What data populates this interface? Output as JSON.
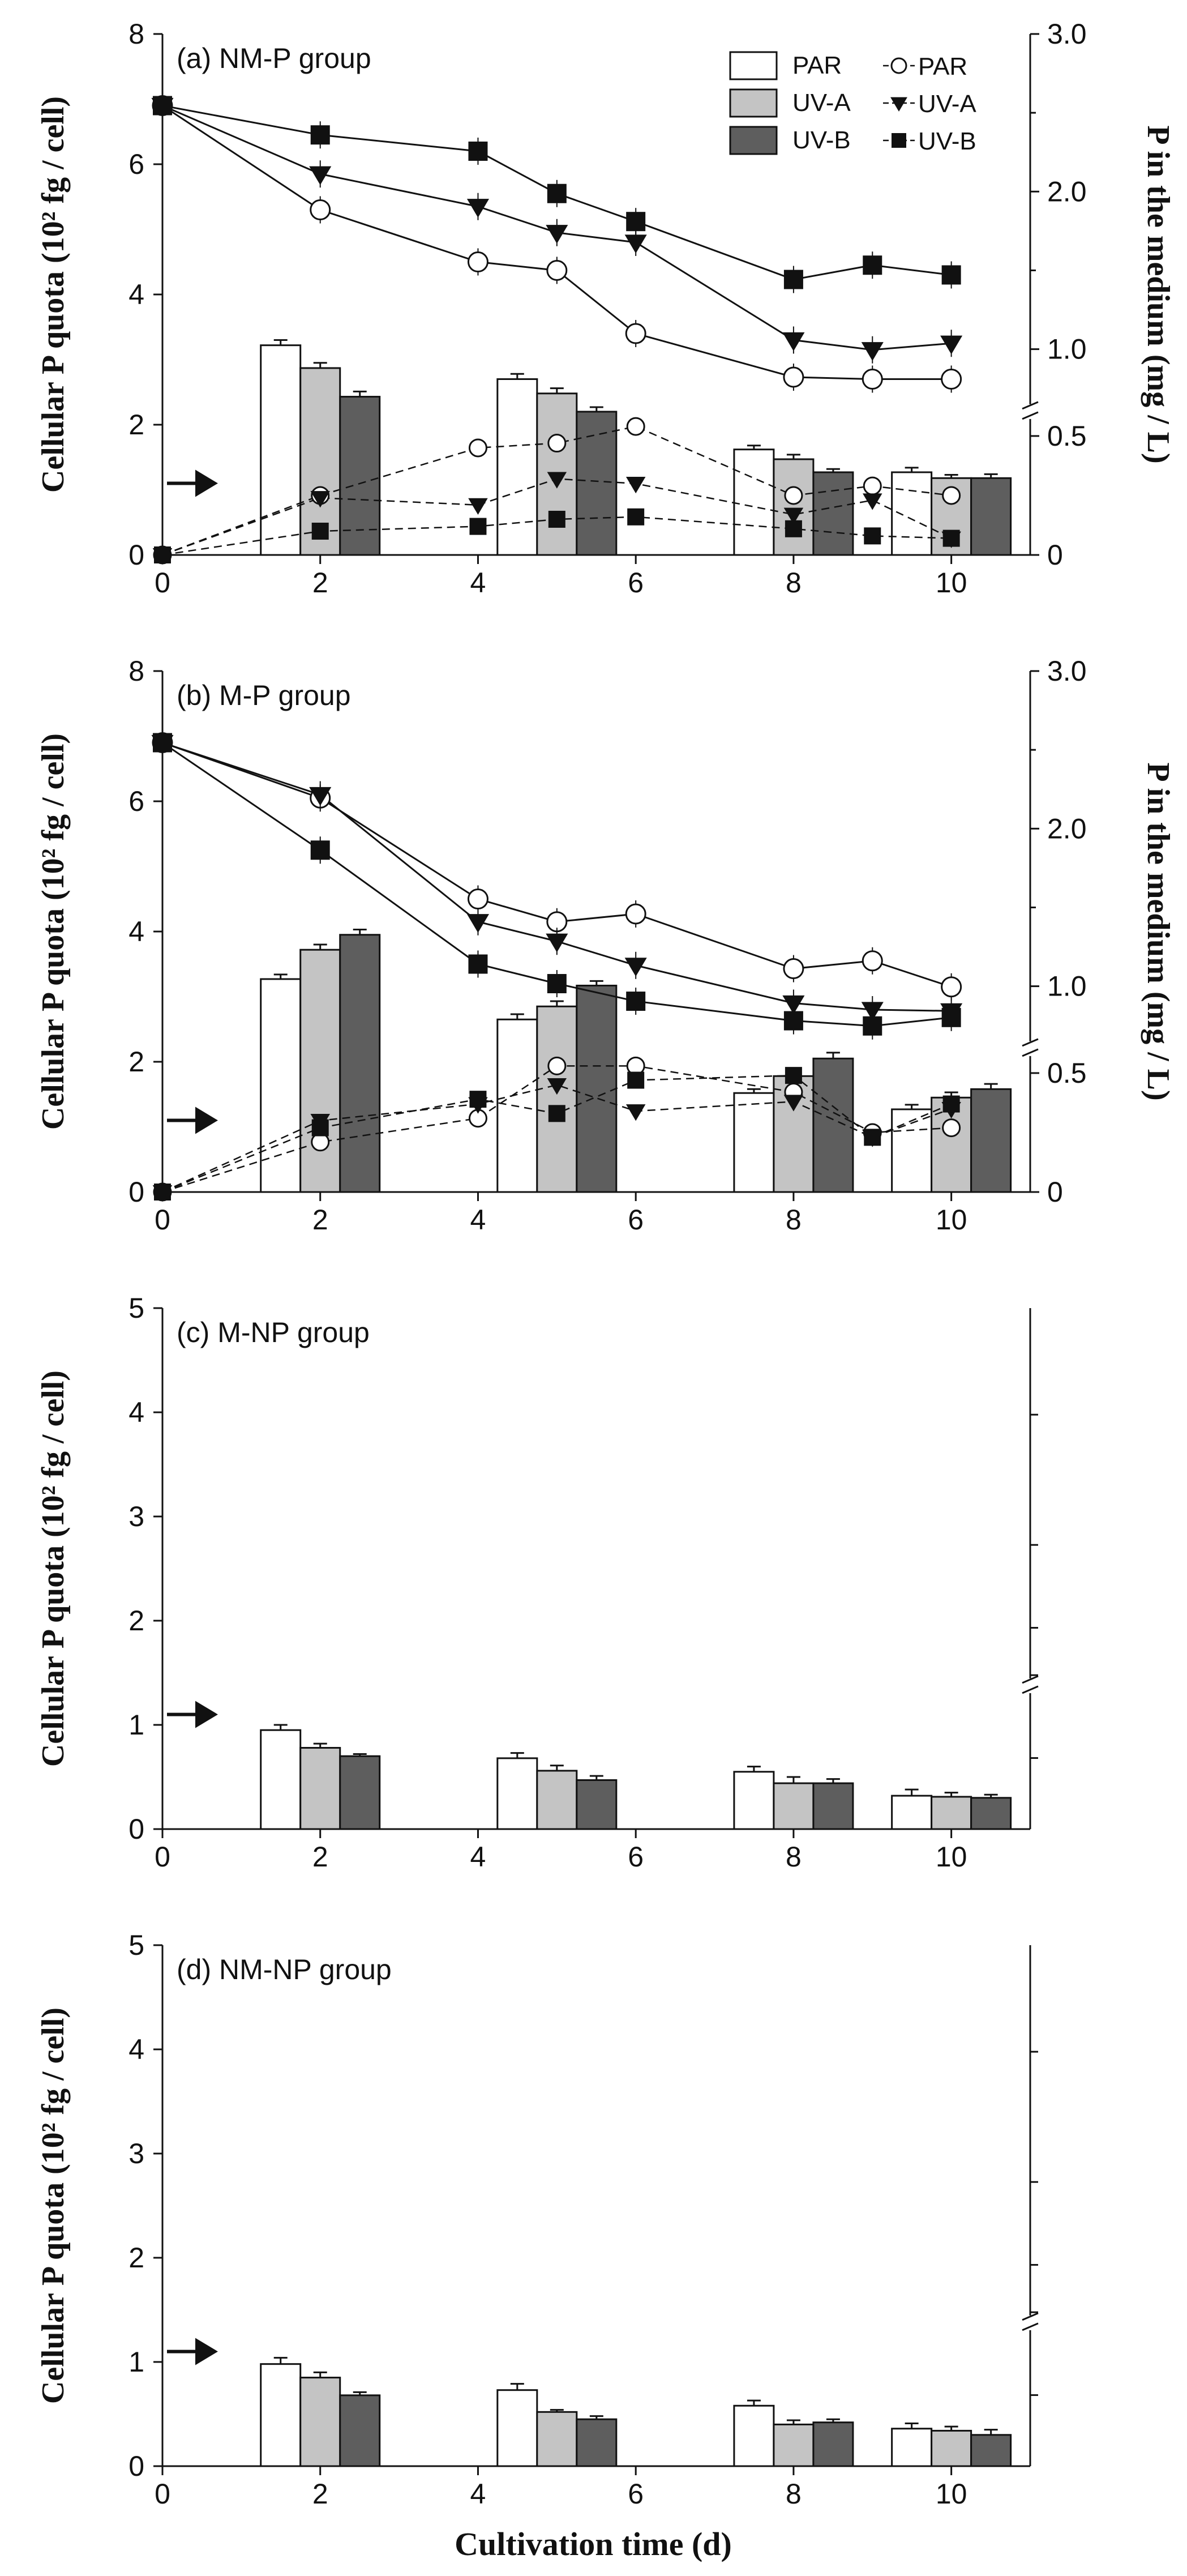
{
  "figure": {
    "xlabel": "Cultivation time (d)",
    "ylabel_left": "Cellular P quota (10² fg / cell)",
    "ylabel_right": "P in the medium (mg / L)"
  },
  "colors": {
    "bar_par": "#ffffff",
    "bar_uva": "#c4c4c4",
    "bar_uvb": "#5e5e5e",
    "ink": "#111111"
  },
  "chart_data": [
    {
      "id": "a",
      "type": "bar+line",
      "title": "(a) NM-P group",
      "legend": {
        "placement": "top-right",
        "bar_entries": [
          "PAR",
          "UV-A",
          "UV-B"
        ],
        "line_entries": [
          "PAR",
          "UV-A",
          "UV-B"
        ]
      },
      "xlim": [
        0,
        11
      ],
      "xticks": [
        0,
        2,
        4,
        6,
        8,
        10
      ],
      "ylim_left": [
        0,
        8
      ],
      "yticks_left": [
        0,
        2,
        4,
        6,
        8
      ],
      "ylim_right_lower": [
        0,
        0.6
      ],
      "ylim_right_upper": [
        0.6,
        3.0
      ],
      "yticks_right": [
        0,
        0.5,
        1.0,
        2.0,
        3.0
      ],
      "ytick_labels_right": [
        "0",
        "0.5",
        "1.0",
        "2.0",
        "3.0"
      ],
      "initial_quota_arrow": 1.1,
      "bars": {
        "days": [
          2,
          5,
          8,
          10
        ],
        "series": [
          {
            "name": "PAR",
            "values": [
              3.22,
              2.7,
              1.62,
              1.27
            ],
            "errors": [
              0.08,
              0.08,
              0.06,
              0.07
            ]
          },
          {
            "name": "UV-A",
            "values": [
              2.87,
              2.48,
              1.47,
              1.18
            ],
            "errors": [
              0.08,
              0.08,
              0.07,
              0.05
            ]
          },
          {
            "name": "UV-B",
            "values": [
              2.43,
              2.2,
              1.27,
              1.18
            ],
            "errors": [
              0.08,
              0.07,
              0.05,
              0.06
            ]
          }
        ]
      },
      "lines": {
        "x": [
          0,
          2,
          4,
          5,
          6,
          8,
          9,
          10
        ],
        "series": [
          {
            "name": "PAR",
            "marker": "open-circle",
            "upper": [
              6.9,
              5.3,
              4.5,
              4.37,
              3.4,
              2.73,
              2.7,
              2.7
            ],
            "lower": [
              0,
              0.25,
              0.45,
              0.47,
              0.54,
              0.25,
              0.29,
              0.25
            ]
          },
          {
            "name": "UV-A",
            "marker": "triangle-down",
            "upper": [
              6.9,
              5.85,
              5.35,
              4.95,
              4.8,
              3.3,
              3.15,
              3.25
            ],
            "lower": [
              0,
              0.24,
              0.21,
              0.32,
              0.3,
              0.17,
              0.23,
              0.07
            ]
          },
          {
            "name": "UV-B",
            "marker": "square",
            "upper": [
              6.9,
              6.45,
              6.2,
              5.55,
              5.12,
              4.23,
              4.45,
              4.3
            ],
            "lower": [
              0,
              0.1,
              0.12,
              0.15,
              0.16,
              0.11,
              0.08,
              0.07
            ]
          }
        ]
      }
    },
    {
      "id": "b",
      "type": "bar+line",
      "title": "(b) M-P group",
      "xlim": [
        0,
        11
      ],
      "xticks": [
        0,
        2,
        4,
        6,
        8,
        10
      ],
      "ylim_left": [
        0,
        8
      ],
      "yticks_left": [
        0,
        2,
        4,
        6,
        8
      ],
      "ylim_right_lower": [
        0,
        0.6
      ],
      "ylim_right_upper": [
        0.6,
        3.0
      ],
      "yticks_right": [
        0,
        0.5,
        1.0,
        2.0,
        3.0
      ],
      "ytick_labels_right": [
        "0",
        "0.5",
        "1.0",
        "2.0",
        "3.0"
      ],
      "initial_quota_arrow": 1.1,
      "bars": {
        "days": [
          2,
          5,
          8,
          10
        ],
        "series": [
          {
            "name": "PAR",
            "values": [
              3.27,
              2.65,
              1.52,
              1.27
            ],
            "errors": [
              0.07,
              0.08,
              0.06,
              0.07
            ]
          },
          {
            "name": "UV-A",
            "values": [
              3.72,
              2.85,
              1.78,
              1.45
            ],
            "errors": [
              0.08,
              0.08,
              0.1,
              0.08
            ]
          },
          {
            "name": "UV-B",
            "values": [
              3.95,
              3.17,
              2.05,
              1.58
            ],
            "errors": [
              0.08,
              0.07,
              0.09,
              0.08
            ]
          }
        ]
      },
      "lines": {
        "x": [
          0,
          2,
          4,
          5,
          6,
          8,
          9,
          10
        ],
        "series": [
          {
            "name": "PAR",
            "marker": "open-circle",
            "upper": [
              6.9,
              6.05,
              4.5,
              4.15,
              4.27,
              3.43,
              3.55,
              3.15
            ],
            "lower": [
              0,
              0.21,
              0.31,
              0.53,
              0.53,
              0.42,
              0.25,
              0.27
            ]
          },
          {
            "name": "UV-A",
            "marker": "triangle-down",
            "upper": [
              6.9,
              6.1,
              4.15,
              3.85,
              3.48,
              2.9,
              2.8,
              2.78
            ],
            "lower": [
              0,
              0.3,
              0.37,
              0.45,
              0.34,
              0.38,
              0.23,
              0.35
            ]
          },
          {
            "name": "UV-B",
            "marker": "square",
            "upper": [
              6.9,
              5.25,
              3.5,
              3.2,
              2.93,
              2.63,
              2.55,
              2.68
            ],
            "lower": [
              0,
              0.27,
              0.39,
              0.33,
              0.47,
              0.49,
              0.23,
              0.37
            ]
          }
        ]
      }
    },
    {
      "id": "c",
      "type": "bar",
      "title": "(c) M-NP group",
      "xlim": [
        0,
        11
      ],
      "xticks": [
        0,
        2,
        4,
        6,
        8,
        10
      ],
      "ylim_left": [
        0,
        5
      ],
      "yticks_left": [
        0,
        1,
        2,
        3,
        4,
        5
      ],
      "initial_quota_arrow": 1.1,
      "bars": {
        "days": [
          2,
          5,
          8,
          10
        ],
        "series": [
          {
            "name": "PAR",
            "values": [
              0.95,
              0.68,
              0.55,
              0.32
            ],
            "errors": [
              0.05,
              0.05,
              0.05,
              0.06
            ]
          },
          {
            "name": "UV-A",
            "values": [
              0.78,
              0.56,
              0.44,
              0.31
            ],
            "errors": [
              0.04,
              0.05,
              0.06,
              0.04
            ]
          },
          {
            "name": "UV-B",
            "values": [
              0.7,
              0.47,
              0.44,
              0.3
            ],
            "errors": [
              0.02,
              0.04,
              0.04,
              0.03
            ]
          }
        ]
      }
    },
    {
      "id": "d",
      "type": "bar",
      "title": "(d) NM-NP group",
      "xlim": [
        0,
        11
      ],
      "xticks": [
        0,
        2,
        4,
        6,
        8,
        10
      ],
      "ylim_left": [
        0,
        5
      ],
      "yticks_left": [
        0,
        1,
        2,
        3,
        4,
        5
      ],
      "initial_quota_arrow": 1.1,
      "bars": {
        "days": [
          2,
          5,
          8,
          10
        ],
        "series": [
          {
            "name": "PAR",
            "values": [
              0.98,
              0.73,
              0.58,
              0.36
            ],
            "errors": [
              0.06,
              0.06,
              0.05,
              0.05
            ]
          },
          {
            "name": "UV-A",
            "values": [
              0.85,
              0.52,
              0.4,
              0.34
            ],
            "errors": [
              0.05,
              0.02,
              0.04,
              0.04
            ]
          },
          {
            "name": "UV-B",
            "values": [
              0.68,
              0.45,
              0.42,
              0.3
            ],
            "errors": [
              0.03,
              0.03,
              0.03,
              0.05
            ]
          }
        ]
      }
    }
  ]
}
